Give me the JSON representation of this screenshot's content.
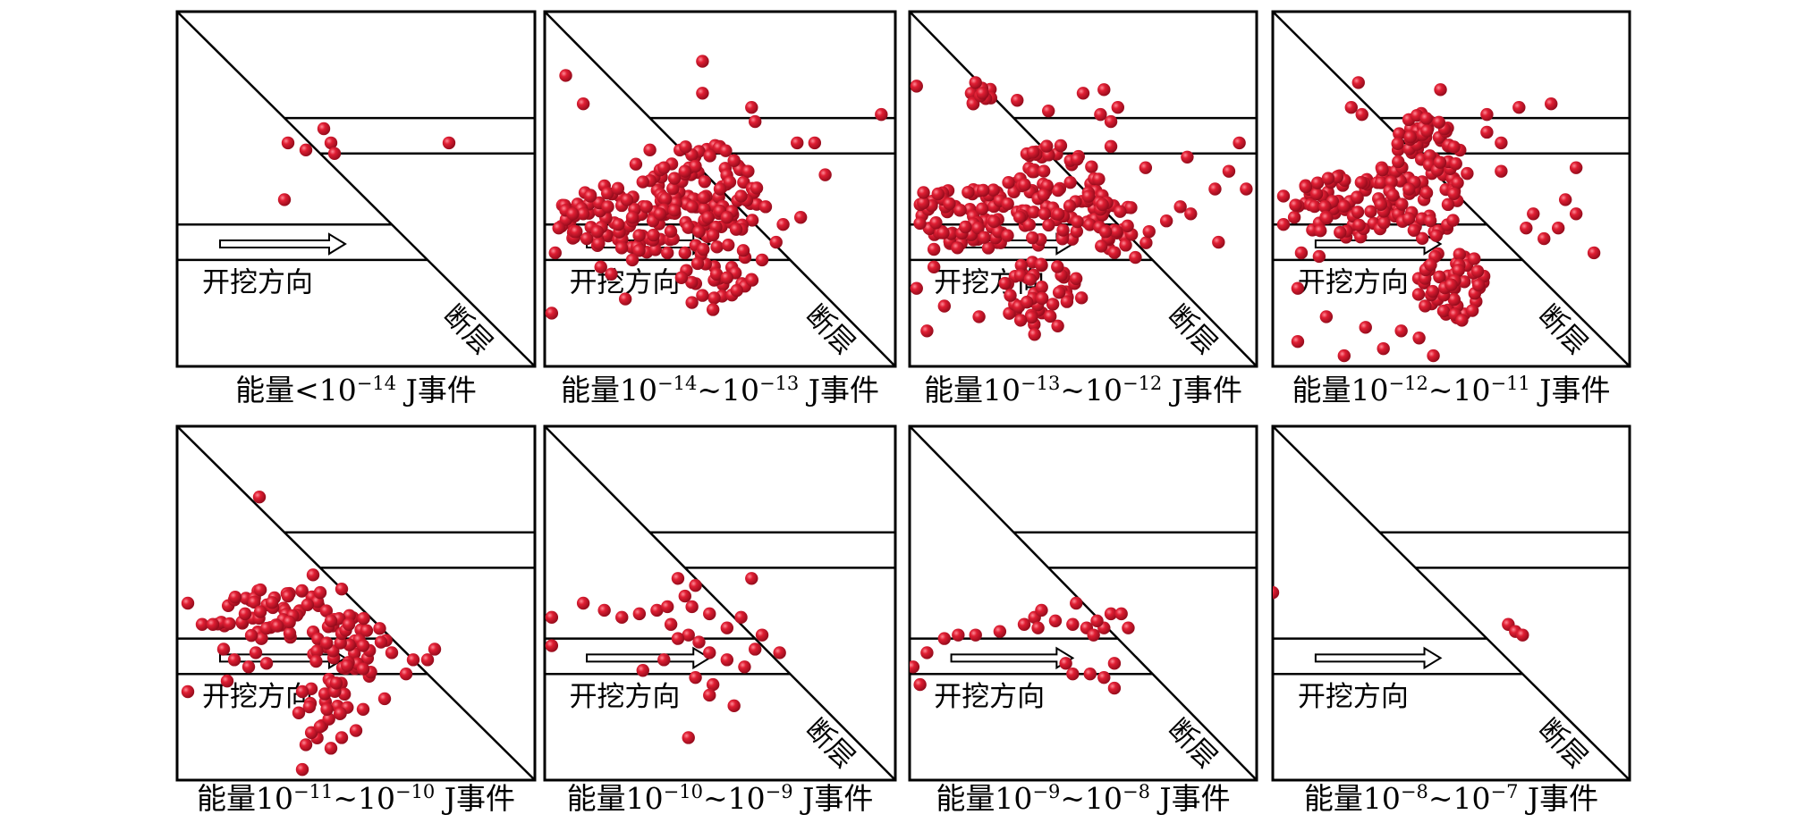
{
  "labels": {
    "direction": "开挖方向",
    "fault": "断层"
  },
  "colors": {
    "event": "#e01e33",
    "event_dark": "#9c0d1d",
    "line": "#000000"
  },
  "panels": [
    {
      "id": "p1",
      "caption": {
        "pre": "能量<10",
        "sup1": "−14",
        "mid": "",
        "sup2": "",
        "post": " J事件"
      },
      "show_fault_label": true,
      "events": [
        [
          0.31,
          0.37
        ],
        [
          0.36,
          0.39
        ],
        [
          0.41,
          0.33
        ],
        [
          0.43,
          0.37
        ],
        [
          0.44,
          0.4
        ],
        [
          0.76,
          0.37
        ],
        [
          0.3,
          0.53
        ]
      ]
    },
    {
      "id": "p2",
      "caption": {
        "pre": "能量10",
        "sup1": "−14",
        "mid": "~10",
        "sup2": "−13",
        "post": " J事件"
      },
      "show_fault_label": true,
      "events": [
        [
          0.45,
          0.14
        ],
        [
          0.06,
          0.18
        ],
        [
          0.11,
          0.26
        ],
        [
          0.45,
          0.23
        ],
        [
          0.6,
          0.31
        ],
        [
          0.59,
          0.27
        ],
        [
          0.96,
          0.29
        ],
        [
          0.77,
          0.37
        ],
        [
          0.72,
          0.37
        ],
        [
          0.8,
          0.46
        ],
        [
          0.06,
          0.56
        ],
        [
          0.04,
          0.61
        ],
        [
          0.03,
          0.68
        ],
        [
          0.02,
          0.85
        ],
        [
          0.16,
          0.72
        ],
        [
          0.19,
          0.74
        ],
        [
          0.23,
          0.81
        ],
        [
          0.25,
          0.7
        ],
        [
          0.13,
          0.52
        ],
        [
          0.11,
          0.57
        ],
        [
          0.08,
          0.57
        ],
        [
          0.35,
          0.68
        ],
        [
          0.34,
          0.44
        ],
        [
          0.37,
          0.47
        ],
        [
          0.54,
          0.42
        ],
        [
          0.58,
          0.45
        ],
        [
          0.56,
          0.52
        ],
        [
          0.63,
          0.55
        ],
        [
          0.68,
          0.6
        ],
        [
          0.73,
          0.58
        ],
        [
          0.66,
          0.65
        ],
        [
          0.49,
          0.74
        ],
        [
          0.45,
          0.8
        ],
        [
          0.42,
          0.82
        ],
        [
          0.48,
          0.84
        ],
        [
          0.52,
          0.75
        ],
        [
          0.4,
          0.68
        ],
        [
          0.44,
          0.62
        ],
        [
          0.37,
          0.56
        ],
        [
          0.29,
          0.55
        ],
        [
          0.25,
          0.58
        ],
        [
          0.21,
          0.6
        ],
        [
          0.18,
          0.55
        ],
        [
          0.28,
          0.48
        ],
        [
          0.3,
          0.39
        ],
        [
          0.26,
          0.43
        ],
        [
          0.4,
          0.45
        ],
        [
          0.42,
          0.55
        ],
        [
          0.5,
          0.5
        ],
        [
          0.52,
          0.58
        ],
        [
          0.48,
          0.63
        ],
        [
          0.39,
          0.75
        ],
        [
          0.31,
          0.63
        ],
        [
          0.12,
          0.64
        ],
        [
          0.09,
          0.62
        ],
        [
          0.15,
          0.62
        ],
        [
          0.62,
          0.7
        ]
      ],
      "clusters": [
        [
          0.25,
          0.58,
          0.22,
          0.1,
          90
        ],
        [
          0.45,
          0.52,
          0.16,
          0.15,
          80
        ],
        [
          0.5,
          0.73,
          0.1,
          0.08,
          25
        ]
      ]
    },
    {
      "id": "p3",
      "caption": {
        "pre": "能量10",
        "sup1": "−13",
        "mid": "~10",
        "sup2": "−12",
        "post": " J事件"
      },
      "show_fault_label": true,
      "events": [
        [
          0.02,
          0.21
        ],
        [
          0.19,
          0.2
        ],
        [
          0.21,
          0.23
        ],
        [
          0.31,
          0.25
        ],
        [
          0.4,
          0.28
        ],
        [
          0.5,
          0.23
        ],
        [
          0.56,
          0.22
        ],
        [
          0.55,
          0.29
        ],
        [
          0.58,
          0.31
        ],
        [
          0.6,
          0.27
        ],
        [
          0.8,
          0.41
        ],
        [
          0.92,
          0.45
        ],
        [
          0.95,
          0.37
        ],
        [
          0.88,
          0.5
        ],
        [
          0.97,
          0.5
        ],
        [
          0.58,
          0.38
        ],
        [
          0.81,
          0.57
        ],
        [
          0.69,
          0.62
        ],
        [
          0.07,
          0.72
        ],
        [
          0.02,
          0.78
        ],
        [
          0.05,
          0.9
        ],
        [
          0.1,
          0.83
        ],
        [
          0.2,
          0.86
        ],
        [
          0.32,
          0.87
        ],
        [
          0.36,
          0.91
        ],
        [
          0.29,
          0.8
        ],
        [
          0.74,
          0.59
        ],
        [
          0.89,
          0.65
        ],
        [
          0.78,
          0.55
        ],
        [
          0.68,
          0.44
        ],
        [
          0.07,
          0.67
        ],
        [
          0.04,
          0.51
        ]
      ],
      "clusters": [
        [
          0.18,
          0.58,
          0.17,
          0.09,
          80
        ],
        [
          0.42,
          0.52,
          0.14,
          0.15,
          80
        ],
        [
          0.38,
          0.8,
          0.12,
          0.1,
          45
        ],
        [
          0.6,
          0.62,
          0.09,
          0.09,
          30
        ],
        [
          0.21,
          0.24,
          0.04,
          0.03,
          10
        ]
      ]
    },
    {
      "id": "p4",
      "caption": {
        "pre": "能量10",
        "sup1": "−12",
        "mid": "~10",
        "sup2": "−11",
        "post": " J事件"
      },
      "show_fault_label": true,
      "events": [
        [
          0.24,
          0.2
        ],
        [
          0.22,
          0.27
        ],
        [
          0.25,
          0.29
        ],
        [
          0.47,
          0.22
        ],
        [
          0.6,
          0.29
        ],
        [
          0.6,
          0.34
        ],
        [
          0.64,
          0.37
        ],
        [
          0.69,
          0.27
        ],
        [
          0.78,
          0.26
        ],
        [
          0.64,
          0.45
        ],
        [
          0.8,
          0.61
        ],
        [
          0.85,
          0.57
        ],
        [
          0.76,
          0.64
        ],
        [
          0.9,
          0.68
        ],
        [
          0.85,
          0.44
        ],
        [
          0.82,
          0.53
        ],
        [
          0.73,
          0.57
        ],
        [
          0.71,
          0.61
        ],
        [
          0.03,
          0.52
        ],
        [
          0.03,
          0.6
        ],
        [
          0.07,
          0.78
        ],
        [
          0.07,
          0.93
        ],
        [
          0.2,
          0.97
        ],
        [
          0.26,
          0.89
        ],
        [
          0.31,
          0.95
        ],
        [
          0.36,
          0.9
        ],
        [
          0.41,
          0.92
        ],
        [
          0.45,
          0.97
        ],
        [
          0.53,
          0.87
        ],
        [
          0.5,
          0.77
        ],
        [
          0.13,
          0.69
        ],
        [
          0.15,
          0.86
        ],
        [
          0.08,
          0.68
        ]
      ],
      "clusters": [
        [
          0.2,
          0.55,
          0.16,
          0.09,
          70
        ],
        [
          0.42,
          0.48,
          0.13,
          0.16,
          85
        ],
        [
          0.5,
          0.77,
          0.1,
          0.1,
          55
        ],
        [
          0.43,
          0.33,
          0.06,
          0.05,
          20
        ]
      ]
    },
    {
      "id": "p5",
      "caption": {
        "pre": "能量10",
        "sup1": "−11",
        "mid": "~10",
        "sup2": "−10",
        "post": " J事件"
      },
      "show_fault_label": false,
      "events": [
        [
          0.23,
          0.2
        ],
        [
          0.03,
          0.5
        ],
        [
          0.07,
          0.56
        ],
        [
          0.13,
          0.63
        ],
        [
          0.03,
          0.75
        ],
        [
          0.38,
          0.42
        ],
        [
          0.4,
          0.47
        ],
        [
          0.46,
          0.46
        ],
        [
          0.43,
          0.55
        ],
        [
          0.48,
          0.56
        ],
        [
          0.52,
          0.62
        ],
        [
          0.57,
          0.61
        ],
        [
          0.6,
          0.64
        ],
        [
          0.66,
          0.66
        ],
        [
          0.7,
          0.66
        ],
        [
          0.64,
          0.7
        ],
        [
          0.72,
          0.63
        ],
        [
          0.58,
          0.77
        ],
        [
          0.52,
          0.8
        ],
        [
          0.5,
          0.86
        ],
        [
          0.46,
          0.88
        ],
        [
          0.43,
          0.91
        ],
        [
          0.35,
          0.75
        ],
        [
          0.34,
          0.81
        ],
        [
          0.36,
          0.9
        ],
        [
          0.35,
          0.97
        ],
        [
          0.25,
          0.67
        ],
        [
          0.14,
          0.72
        ],
        [
          0.16,
          0.66
        ],
        [
          0.22,
          0.64
        ],
        [
          0.31,
          0.48
        ],
        [
          0.19,
          0.53
        ],
        [
          0.1,
          0.56
        ],
        [
          0.2,
          0.68
        ]
      ],
      "clusters": [
        [
          0.26,
          0.53,
          0.16,
          0.08,
          55
        ],
        [
          0.48,
          0.63,
          0.11,
          0.1,
          40
        ],
        [
          0.42,
          0.8,
          0.07,
          0.09,
          20
        ]
      ]
    },
    {
      "id": "p6",
      "caption": {
        "pre": "能量10",
        "sup1": "−10",
        "mid": "~10",
        "sup2": "−9",
        "post": " J事件"
      },
      "show_fault_label": true,
      "events": [
        [
          0.02,
          0.54
        ],
        [
          0.11,
          0.5
        ],
        [
          0.17,
          0.52
        ],
        [
          0.22,
          0.54
        ],
        [
          0.27,
          0.53
        ],
        [
          0.32,
          0.52
        ],
        [
          0.35,
          0.51
        ],
        [
          0.38,
          0.43
        ],
        [
          0.4,
          0.48
        ],
        [
          0.42,
          0.51
        ],
        [
          0.41,
          0.59
        ],
        [
          0.44,
          0.61
        ],
        [
          0.47,
          0.64
        ],
        [
          0.52,
          0.57
        ],
        [
          0.56,
          0.54
        ],
        [
          0.6,
          0.63
        ],
        [
          0.62,
          0.59
        ],
        [
          0.52,
          0.66
        ],
        [
          0.38,
          0.6
        ],
        [
          0.34,
          0.66
        ],
        [
          0.28,
          0.69
        ],
        [
          0.43,
          0.71
        ],
        [
          0.48,
          0.73
        ],
        [
          0.57,
          0.68
        ],
        [
          0.67,
          0.64
        ],
        [
          0.47,
          0.76
        ],
        [
          0.54,
          0.79
        ],
        [
          0.02,
          0.62
        ],
        [
          0.59,
          0.43
        ],
        [
          0.47,
          0.53
        ],
        [
          0.43,
          0.45
        ],
        [
          0.41,
          0.88
        ],
        [
          0.36,
          0.56
        ]
      ]
    },
    {
      "id": "p7",
      "caption": {
        "pre": "能量10",
        "sup1": "−9",
        "mid": "~10",
        "sup2": "−8",
        "post": " J事件"
      },
      "show_fault_label": true,
      "events": [
        [
          0.05,
          0.64
        ],
        [
          0.1,
          0.6
        ],
        [
          0.14,
          0.59
        ],
        [
          0.19,
          0.59
        ],
        [
          0.26,
          0.58
        ],
        [
          0.33,
          0.56
        ],
        [
          0.36,
          0.54
        ],
        [
          0.37,
          0.57
        ],
        [
          0.38,
          0.52
        ],
        [
          0.42,
          0.55
        ],
        [
          0.47,
          0.56
        ],
        [
          0.51,
          0.57
        ],
        [
          0.53,
          0.59
        ],
        [
          0.56,
          0.57
        ],
        [
          0.58,
          0.53
        ],
        [
          0.61,
          0.53
        ],
        [
          0.63,
          0.57
        ],
        [
          0.48,
          0.5
        ],
        [
          0.54,
          0.55
        ],
        [
          0.45,
          0.67
        ],
        [
          0.47,
          0.7
        ],
        [
          0.52,
          0.7
        ],
        [
          0.56,
          0.71
        ],
        [
          0.59,
          0.74
        ],
        [
          0.01,
          0.68
        ],
        [
          0.03,
          0.73
        ],
        [
          0.59,
          0.67
        ]
      ]
    },
    {
      "id": "p8",
      "caption": {
        "pre": "能量10",
        "sup1": "−8",
        "mid": "~10",
        "sup2": "−7",
        "post": " J事件"
      },
      "show_fault_label": true,
      "events": [
        [
          0.0,
          0.47
        ],
        [
          0.66,
          0.56
        ],
        [
          0.68,
          0.58
        ],
        [
          0.7,
          0.59
        ]
      ]
    }
  ]
}
